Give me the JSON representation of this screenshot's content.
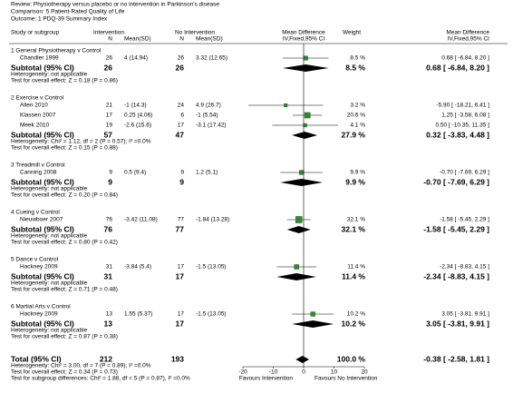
{
  "header": {
    "review": "Review: Physiotherapy versus placebo or no intervention in Parkinson's disease",
    "comparison": "Comparison: 5 Patient-Rated Quality of Life",
    "outcome": "Outcome: 1 PDQ-39 Summary Index"
  },
  "columns": [
    "Study or subgroup",
    "Intervention",
    "N",
    "Mean(SD)",
    "No Intervention",
    "N",
    "Mean(SD)",
    "Mean Difference",
    "IV,Fixed,95% CI",
    "Weight",
    "Mean Difference",
    "IV,Fixed,95% CI"
  ],
  "chart_data": {
    "type": "forest",
    "xlim": [
      -20,
      20
    ],
    "xticks": [
      -20,
      -10,
      0,
      10,
      20
    ],
    "favours_left": "Favours Intervention",
    "favours_right": "Favours No Intervention",
    "square_color": "#2e8b2e",
    "groups": [
      {
        "title": "1 General Physiotherapy v Control",
        "studies": [
          {
            "name": "Chandler 1999",
            "n_int": 26,
            "msd_int": "4 (14.94)",
            "n_ctrl": 26,
            "msd_ctrl": "3.32 (12.65)",
            "weight": 8.5,
            "weight_label": "8.5 %",
            "md": 0.68,
            "lo": -6.84,
            "hi": 8.2,
            "md_label": "0.68 [ -6.84, 8.20 ]"
          }
        ],
        "subtotal": {
          "label": "Subtotal (95% CI)",
          "n_int": 26,
          "n_ctrl": 26,
          "weight": 8.5,
          "weight_label": "8.5 %",
          "md": 0.68,
          "lo": -6.84,
          "hi": 8.2,
          "md_label": "0.68 [ -6.84, 8.20 ]"
        },
        "heterogeneity": "Heterogeneity: not applicable",
        "test": "Test for overall effect: Z = 0.18 (P = 0.86)"
      },
      {
        "title": "2 Exercise v Control",
        "studies": [
          {
            "name": "Allen 2010",
            "n_int": 21,
            "msd_int": "-1 (14.3)",
            "n_ctrl": 24,
            "msd_ctrl": "4.9 (26.7)",
            "weight": 3.2,
            "weight_label": "3.2 %",
            "md": -5.9,
            "lo": -18.21,
            "hi": 6.41,
            "md_label": "-5.90 [ -18.21, 6.41 ]"
          },
          {
            "name": "Klassen 2007",
            "n_int": 17,
            "msd_int": "0.25 (4.06)",
            "n_ctrl": 6,
            "msd_ctrl": "-1 (5.54)",
            "weight": 20.6,
            "weight_label": "20.6 %",
            "md": 1.25,
            "lo": -3.58,
            "hi": 6.08,
            "md_label": "1.25 [ -3.58, 6.08 ]"
          },
          {
            "name": "Meek 2010",
            "n_int": 19,
            "msd_int": "-2.6 (15.6)",
            "n_ctrl": 17,
            "msd_ctrl": "-3.1 (17.42)",
            "weight": 4.1,
            "weight_label": "4.1 %",
            "md": 0.5,
            "lo": -10.35,
            "hi": 11.35,
            "md_label": "0.50 [ -10.35, 11.35 ]"
          }
        ],
        "subtotal": {
          "label": "Subtotal (95% CI)",
          "n_int": 57,
          "n_ctrl": 47,
          "weight": 27.9,
          "weight_label": "27.9 %",
          "md": 0.32,
          "lo": -3.83,
          "hi": 4.48,
          "md_label": "0.32 [ -3.83, 4.48 ]"
        },
        "heterogeneity": "Heterogeneity: Chi² = 1.12, df = 2 (P = 0.57); I² =0.0%",
        "test": "Test for overall effect: Z = 0.15 (P = 0.88)"
      },
      {
        "title": "3 Treadmill v Control",
        "studies": [
          {
            "name": "Canning 2008",
            "n_int": 9,
            "msd_int": "0.5 (9.4)",
            "n_ctrl": 9,
            "msd_ctrl": "1.2 (5.1)",
            "weight": 9.9,
            "weight_label": "9.9 %",
            "md": -0.7,
            "lo": -7.69,
            "hi": 6.29,
            "md_label": "-0.70 [ -7.69, 6.29 ]"
          }
        ],
        "subtotal": {
          "label": "Subtotal (95% CI)",
          "n_int": 9,
          "n_ctrl": 9,
          "weight": 9.9,
          "weight_label": "9.9 %",
          "md": -0.7,
          "lo": -7.69,
          "hi": 6.29,
          "md_label": "-0.70 [ -7.69, 6.29 ]"
        },
        "heterogeneity": "Heterogeneity: not applicable",
        "test": "Test for overall effect: Z = 0.20 (P = 0.84)"
      },
      {
        "title": "4 Cueing v Control",
        "studies": [
          {
            "name": "Nieuwboer 2007",
            "n_int": 76,
            "msd_int": "-3.42 (11.08)",
            "n_ctrl": 77,
            "msd_ctrl": "-1.84 (13.28)",
            "weight": 32.1,
            "weight_label": "32.1 %",
            "md": -1.58,
            "lo": -5.45,
            "hi": 2.29,
            "md_label": "-1.58 [ -5.45, 2.29 ]"
          }
        ],
        "subtotal": {
          "label": "Subtotal (95% CI)",
          "n_int": 76,
          "n_ctrl": 77,
          "weight": 32.1,
          "weight_label": "32.1 %",
          "md": -1.58,
          "lo": -5.45,
          "hi": 2.29,
          "md_label": "-1.58 [ -5.45, 2.29 ]"
        },
        "heterogeneity": "Heterogeneity: not applicable",
        "test": "Test for overall effect: Z = 0.80 (P = 0.42)"
      },
      {
        "title": "5 Dance v Control",
        "studies": [
          {
            "name": "Hackney 2009",
            "n_int": 31,
            "msd_int": "-3.84 (5.4)",
            "n_ctrl": 17,
            "msd_ctrl": "-1.5 (13.05)",
            "weight": 11.4,
            "weight_label": "11.4 %",
            "md": -2.34,
            "lo": -8.83,
            "hi": 4.15,
            "md_label": "-2.34 [ -8.83, 4.15 ]"
          }
        ],
        "subtotal": {
          "label": "Subtotal (95% CI)",
          "n_int": 31,
          "n_ctrl": 17,
          "weight": 11.4,
          "weight_label": "11.4 %",
          "md": -2.34,
          "lo": -8.83,
          "hi": 4.15,
          "md_label": "-2.34 [ -8.83, 4.15 ]"
        },
        "heterogeneity": "Heterogeneity: not applicable",
        "test": "Test for overall effect: Z = 0.71 (P = 0.48)"
      },
      {
        "title": "6 Martial Arts v Control",
        "studies": [
          {
            "name": "Hackney 2009",
            "n_int": 13,
            "msd_int": "1.55 (5.37)",
            "n_ctrl": 17,
            "msd_ctrl": "-1.5 (13.05)",
            "weight": 10.2,
            "weight_label": "10.2 %",
            "md": 3.05,
            "lo": -3.81,
            "hi": 9.91,
            "md_label": "3.05 [ -3.81, 9.91 ]"
          }
        ],
        "subtotal": {
          "label": "Subtotal (95% CI)",
          "n_int": 13,
          "n_ctrl": 17,
          "weight": 10.2,
          "weight_label": "10.2 %",
          "md": 3.05,
          "lo": -3.81,
          "hi": 9.91,
          "md_label": "3.05 [ -3.81, 9.91 ]"
        },
        "heterogeneity": "Heterogeneity: not applicable",
        "test": "Test for overall effect: Z = 0.87 (P = 0.38)"
      }
    ],
    "total": {
      "label": "Total (95% CI)",
      "n_int": 212,
      "n_ctrl": 193,
      "weight": 100.0,
      "weight_label": "100.0 %",
      "md": -0.38,
      "lo": -2.58,
      "hi": 1.81,
      "md_label": "-0.38 [ -2.58, 1.81 ]",
      "notes": [
        "Heterogeneity: Chi² = 3.00, df = 7 (P = 0.89); I² =0.0%",
        "Test for overall effect: Z = 0.34 (P = 0.73)",
        "Test for subgroup differences: Chi² = 1.88, df = 5 (P = 0.87), I² =0.0%"
      ]
    }
  }
}
